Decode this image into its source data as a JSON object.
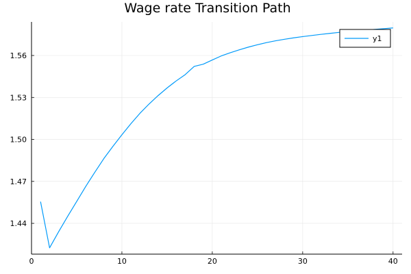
{
  "chart_data": {
    "type": "line",
    "title": "Wage rate Transition Path",
    "xlabel": "",
    "ylabel": "",
    "xlim": [
      0,
      41
    ],
    "ylim": [
      1.418,
      1.584
    ],
    "x_ticks": [
      0,
      10,
      20,
      30,
      40
    ],
    "y_ticks": [
      1.44,
      1.47,
      1.5,
      1.53,
      1.56
    ],
    "x_tick_labels": [
      "0",
      "10",
      "20",
      "30",
      "40"
    ],
    "y_tick_labels": [
      "1.44",
      "1.47",
      "1.50",
      "1.53",
      "1.56"
    ],
    "grid": true,
    "legend_position": "top-right",
    "series": [
      {
        "name": "y1",
        "color": "#009AFA",
        "x": [
          1,
          2,
          3,
          4,
          5,
          6,
          7,
          8,
          9,
          10,
          11,
          12,
          13,
          14,
          15,
          16,
          17,
          18,
          19,
          20,
          21,
          22,
          23,
          24,
          25,
          26,
          27,
          28,
          29,
          30,
          31,
          32,
          33,
          34,
          35,
          36,
          37,
          38,
          39,
          40
        ],
        "values": [
          1.4555,
          1.4225,
          1.434,
          1.445,
          1.4557,
          1.4664,
          1.4765,
          1.4863,
          1.495,
          1.5033,
          1.5113,
          1.5187,
          1.5253,
          1.5313,
          1.5368,
          1.5418,
          1.5463,
          1.5522,
          1.5538,
          1.5568,
          1.5597,
          1.562,
          1.5641,
          1.566,
          1.5677,
          1.5692,
          1.5705,
          1.5716,
          1.5726,
          1.5735,
          1.5743,
          1.5751,
          1.5758,
          1.5765,
          1.5771,
          1.5777,
          1.5782,
          1.5787,
          1.5792,
          1.5797
        ]
      }
    ]
  }
}
